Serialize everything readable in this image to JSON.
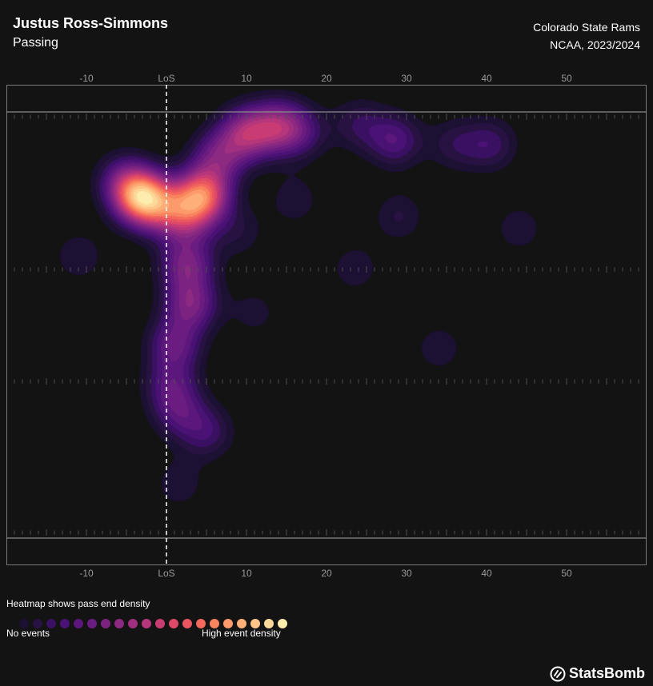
{
  "header": {
    "player_name": "Justus Ross-Simmons",
    "subtitle": "Passing",
    "team": "Colorado State Rams",
    "competition": "NCAA, 2023/2024"
  },
  "legend": {
    "title": "Heatmap shows pass end density",
    "low_label": "No events",
    "high_label": "High event density",
    "colors": [
      "#1c1033",
      "#271242",
      "#3a1062",
      "#4a1274",
      "#5b177b",
      "#6a1c81",
      "#7c2382",
      "#8c2981",
      "#a02f7f",
      "#b5367a",
      "#c83c73",
      "#de4968",
      "#ea5661",
      "#f4695c",
      "#f8845f",
      "#fd9a6a",
      "#feaf77",
      "#fec488",
      "#fdd999",
      "#fcecad"
    ]
  },
  "brand": {
    "name": "StatsBomb"
  },
  "chart_data": {
    "type": "heatmap",
    "x_axis": {
      "range": [
        -20,
        60
      ],
      "ticks": [
        -10,
        0,
        10,
        20,
        30,
        40,
        50
      ],
      "tick_labels": [
        "-10",
        "LoS",
        "10",
        "20",
        "30",
        "40",
        "50"
      ]
    },
    "y_axis": {
      "range": [
        0,
        53.3
      ]
    },
    "line_of_scrimmage": 0,
    "hotspots": [
      {
        "x": -3.2,
        "y": 10.6,
        "intensity": 1.0
      },
      {
        "x": -0.5,
        "y": 12.0,
        "intensity": 0.38
      },
      {
        "x": -5.5,
        "y": 8.5,
        "intensity": 0.3
      },
      {
        "x": 4.5,
        "y": 10.3,
        "intensity": 0.82
      },
      {
        "x": 2.5,
        "y": 13.0,
        "intensity": 0.45
      },
      {
        "x": 10.0,
        "y": 2.6,
        "intensity": 0.55
      },
      {
        "x": 14.0,
        "y": 1.8,
        "intensity": 0.5
      },
      {
        "x": 6.5,
        "y": 5.5,
        "intensity": 0.4
      },
      {
        "x": 17.0,
        "y": 2.5,
        "intensity": 0.22
      },
      {
        "x": 2.5,
        "y": 19.0,
        "intensity": 0.45
      },
      {
        "x": 3.0,
        "y": 24.0,
        "intensity": 0.45
      },
      {
        "x": 1.0,
        "y": 29.0,
        "intensity": 0.38
      },
      {
        "x": 0.5,
        "y": 34.0,
        "intensity": 0.28
      },
      {
        "x": 1.5,
        "y": 37.5,
        "intensity": 0.28
      },
      {
        "x": 5.0,
        "y": 40.0,
        "intensity": 0.25
      },
      {
        "x": -11.0,
        "y": 18.0,
        "intensity": 0.15
      },
      {
        "x": 11.0,
        "y": 25.0,
        "intensity": 0.12
      },
      {
        "x": 9.0,
        "y": 15.0,
        "intensity": 0.14
      },
      {
        "x": 16.0,
        "y": 11.0,
        "intensity": 0.14
      },
      {
        "x": 28.5,
        "y": 3.5,
        "intensity": 0.32
      },
      {
        "x": 24.0,
        "y": 1.5,
        "intensity": 0.2
      },
      {
        "x": 36.0,
        "y": 4.0,
        "intensity": 0.18
      },
      {
        "x": 40.5,
        "y": 4.0,
        "intensity": 0.24
      },
      {
        "x": 29.0,
        "y": 13.0,
        "intensity": 0.16
      },
      {
        "x": 44.0,
        "y": 14.5,
        "intensity": 0.14
      },
      {
        "x": 23.5,
        "y": 19.5,
        "intensity": 0.14
      },
      {
        "x": 34.0,
        "y": 29.5,
        "intensity": 0.14
      },
      {
        "x": 1.5,
        "y": 46.5,
        "intensity": 0.14
      }
    ]
  }
}
